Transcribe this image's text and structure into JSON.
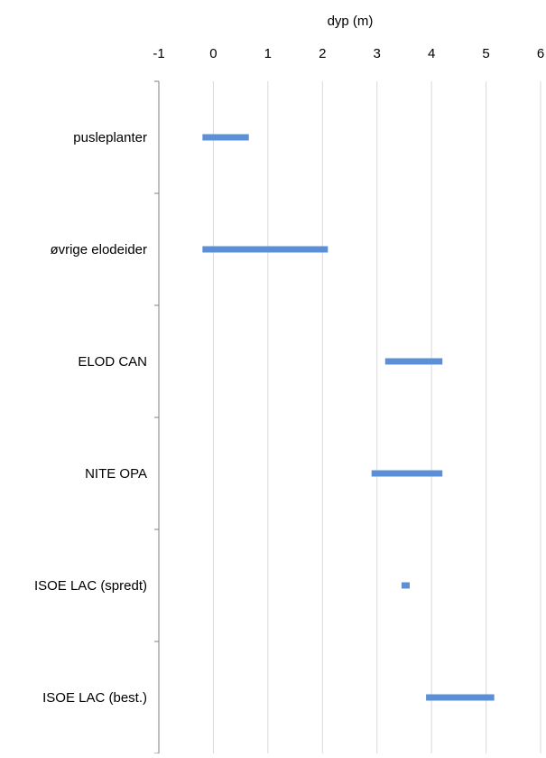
{
  "colors": {
    "bar": "#5B8FD6",
    "grid": "#D9D9D9",
    "axis": "#7F7F7F",
    "text": "#000000",
    "background": "#FFFFFF"
  },
  "chart_data": {
    "type": "bar",
    "orientation": "horizontal-range",
    "title": "",
    "xlabel": "dyp (m)",
    "ylabel": "",
    "x_axis_position": "top",
    "xlim": [
      -1,
      6
    ],
    "x_ticks": [
      -1,
      0,
      1,
      2,
      3,
      4,
      5,
      6
    ],
    "x_tick_labels": [
      "-1",
      "0",
      "1",
      "2",
      "3",
      "4",
      "5",
      "6"
    ],
    "grid": true,
    "legend": "none",
    "categories": [
      "pusleplanter",
      "øvrige elodeider",
      "ELOD CAN",
      "NITE OPA",
      "ISOE LAC (spredt)",
      "ISOE LAC (best.)"
    ],
    "ranges": [
      [
        -0.2,
        0.65
      ],
      [
        -0.2,
        2.1
      ],
      [
        3.15,
        4.2
      ],
      [
        2.9,
        4.2
      ],
      [
        3.45,
        3.6
      ],
      [
        3.9,
        5.15
      ]
    ]
  }
}
